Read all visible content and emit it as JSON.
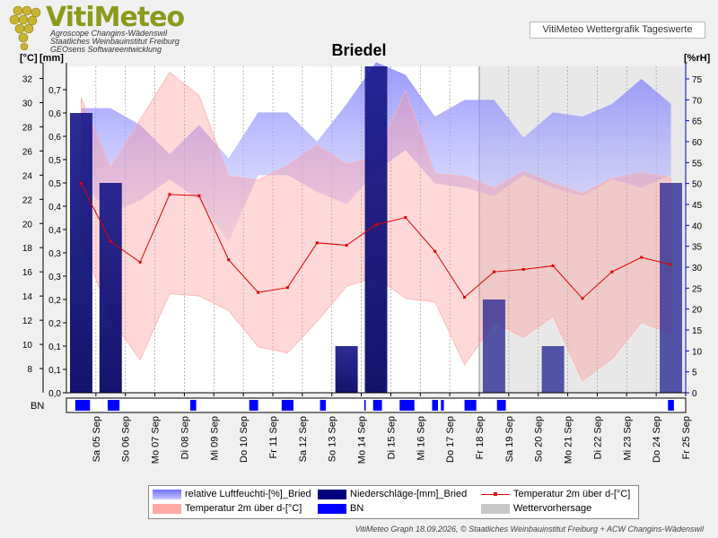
{
  "header": {
    "logo_title": "VitiMeteo",
    "logo_sub1": "Agroscope Changins-Wädenswil",
    "logo_sub2": "Staatliches Weinbauinstitut Freiburg",
    "logo_sub3": "GEOsens Softwareentwicklung",
    "product": "VitiMeteo Wettergrafik Tageswerte"
  },
  "footer": "VitiMeteo Graph 18.09.2026, © Staatliches Weinbauinstitut Freiburg + ACW Changins-Wädenswil",
  "colors": {
    "humidity": "#8080ff",
    "temp_band": "#ffb0b0",
    "precip": "#000080",
    "bn": "#0000ff",
    "forecast": "#c8c8c8",
    "temp_line": "#e00000"
  },
  "chart_data": {
    "type": "line",
    "title": "Briedel",
    "y_left_temp_label": "[°C]",
    "y_left_precip_label": "[mm]",
    "y_right_label": "[%rH]",
    "temp_ylim": [
      6,
      33
    ],
    "precip_ylim": [
      0,
      0.7
    ],
    "rh_ylim": [
      0,
      78
    ],
    "temp_ticks": [
      8,
      10,
      12,
      14,
      16,
      18,
      20,
      22,
      24,
      26,
      28,
      30,
      32
    ],
    "precip_ticks": [
      "0,0",
      "0,1",
      "0,1",
      "0,2",
      "0,2",
      "0,3",
      "0,3",
      "0,4",
      "0,4",
      "0,5",
      "0,5",
      "0,6",
      "0,6",
      "0,7"
    ],
    "rh_ticks": [
      0,
      5,
      10,
      15,
      20,
      25,
      30,
      35,
      40,
      45,
      50,
      55,
      60,
      65,
      70,
      75
    ],
    "categories": [
      "Sa 05 Sep",
      "So 06 Sep",
      "Mo 07 Sep",
      "Di 08 Sep",
      "Mi 09 Sep",
      "Do 10 Sep",
      "Fr 11 Sep",
      "Sa 12 Sep",
      "So 13 Sep",
      "Mo 14 Sep",
      "Di 15 Sep",
      "Mi 16 Sep",
      "Do 17 Sep",
      "Fr 18 Sep",
      "Sa 19 Sep",
      "So 20 Sep",
      "Mo 21 Sep",
      "Di 22 Sep",
      "Mi 23 Sep",
      "Do 24 Sep",
      "Fr 25 Sep"
    ],
    "forecast_start": "Fr 18 Sep",
    "temp_mean": [
      23.3,
      18.5,
      16.8,
      22.4,
      22.3,
      17.0,
      14.3,
      14.7,
      18.4,
      18.2,
      19.9,
      20.5,
      17.7,
      13.9,
      16.0,
      16.2,
      16.5,
      13.8,
      16.0,
      17.2,
      16.6
    ],
    "temp_max": [
      30.4,
      24.6,
      28.6,
      32.5,
      30.6,
      23.9,
      23.6,
      24.8,
      26.5,
      24.9,
      25.5,
      31.0,
      24.1,
      23.9,
      22.9,
      24.3,
      23.3,
      22.5,
      23.7,
      24.2,
      23.8
    ],
    "temp_min": [
      18.6,
      12.2,
      8.7,
      14.2,
      14.0,
      12.8,
      9.8,
      9.3,
      11.9,
      14.8,
      15.6,
      13.8,
      13.5,
      8.3,
      11.8,
      10.6,
      12.3,
      7.0,
      8.8,
      11.8,
      10.9
    ],
    "rh_max": [
      68,
      68,
      64,
      57,
      64,
      56,
      67,
      67,
      60,
      69,
      79,
      76,
      66,
      70,
      70,
      61,
      67,
      66,
      69,
      75,
      69
    ],
    "rh_min": [
      50,
      43,
      46,
      51,
      46,
      36,
      52,
      52,
      48,
      45,
      53,
      58,
      50,
      49,
      47,
      52,
      49,
      47,
      51,
      49,
      52
    ],
    "precip": [
      0.6,
      0.45,
      0,
      0,
      0,
      0,
      0,
      0,
      0,
      0.1,
      0.7,
      0,
      0,
      0,
      0.2,
      0,
      0.1,
      0,
      0,
      0,
      0.45
    ],
    "bn": [
      [
        0.3,
        0.8
      ],
      [
        1.4,
        1.8
      ],
      [
        4.2,
        4.4
      ],
      [
        6.2,
        6.5
      ],
      [
        7.3,
        7.7
      ],
      [
        8.6,
        8.8
      ],
      [
        10.1,
        10.15
      ],
      [
        10.4,
        10.7
      ],
      [
        11.3,
        11.8
      ],
      [
        12.4,
        12.6
      ],
      [
        12.7,
        12.8
      ],
      [
        13.5,
        13.9
      ],
      [
        14.6,
        14.9
      ],
      [
        20.4,
        20.6
      ]
    ],
    "series_names": [
      "relative Luftfeuchti-[%]_Bried",
      "Niederschläge-[mm]_Bried",
      "Temperatur 2m über d-[°C]",
      "Temperatur 2m über d-[°C]",
      "BN",
      "Wettervorhersage"
    ],
    "bn_label": "BN"
  }
}
